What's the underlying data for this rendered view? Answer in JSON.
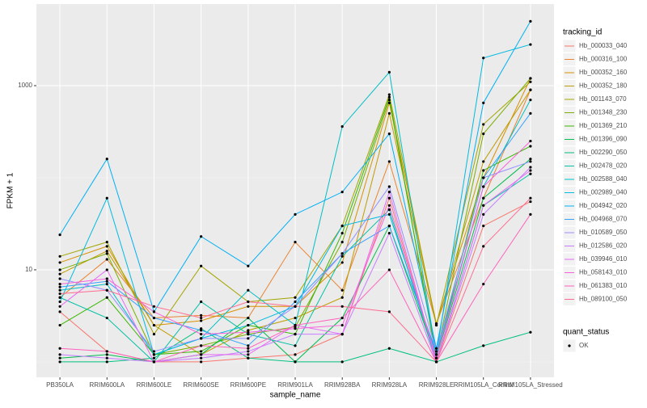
{
  "chart_data": {
    "type": "line",
    "xlabel": "sample_name",
    "ylabel": "FPKM + 1",
    "log_y": true,
    "grid": true,
    "categories": [
      "PB350LA",
      "RRIM600LA",
      "RRIM600LE",
      "RRIM600SE",
      "RRIM600PE",
      "RRIM901LA",
      "RRIM928BA",
      "RRIM928LA",
      "RRIM928LE",
      "RRIM105LA_Control",
      "RRIM105LA_Stressed"
    ],
    "ylim": [
      0.68,
      7700
    ],
    "yticks": [
      10,
      1000
    ],
    "legend_title": "tracking_id",
    "series": [
      {
        "name": "Hb_000033_040",
        "color": "#F8766D",
        "values": [
          3.5,
          1.3,
          1,
          1,
          1.1,
          1.2,
          2.0,
          60,
          1,
          30,
          55
        ]
      },
      {
        "name": "Hb_000316_100",
        "color": "#EA8331",
        "values": [
          5,
          13,
          3,
          3.2,
          3,
          20,
          6,
          150,
          2.6,
          60,
          900
        ]
      },
      {
        "name": "Hb_000352_160",
        "color": "#D89000",
        "values": [
          12,
          18,
          2.5,
          2.8,
          4,
          4,
          12,
          650,
          2.6,
          100,
          1200
        ]
      },
      {
        "name": "Hb_000352_180",
        "color": "#C09B00",
        "values": [
          9,
          16,
          2.5,
          1.2,
          2.2,
          3,
          5,
          500,
          2.5,
          150,
          900
        ]
      },
      {
        "name": "Hb_001143_070",
        "color": "#A3A500",
        "values": [
          14,
          20,
          2,
          11,
          4.5,
          5,
          30,
          800,
          2.5,
          380,
          1100
        ]
      },
      {
        "name": "Hb_001348_230",
        "color": "#7CAE00",
        "values": [
          10,
          15,
          1.2,
          1.5,
          2,
          2.4,
          20,
          700,
          1.2,
          300,
          1200
        ]
      },
      {
        "name": "Hb_001369_210",
        "color": "#39B600",
        "values": [
          2.5,
          5,
          1.2,
          1.3,
          2.5,
          2,
          25,
          750,
          1.1,
          120,
          220
        ]
      },
      {
        "name": "Hb_001396_090",
        "color": "#00BB4E",
        "values": [
          1.1,
          1.2,
          1,
          1.2,
          3,
          1,
          3,
          30,
          1.1,
          60,
          160
        ]
      },
      {
        "name": "Hb_002290_050",
        "color": "#00BF7D",
        "values": [
          1,
          1,
          1.1,
          2.3,
          1.1,
          1,
          1,
          1.4,
          1,
          1.5,
          2.1
        ]
      },
      {
        "name": "Hb_002478_020",
        "color": "#00C1A3",
        "values": [
          5,
          3,
          1,
          4.5,
          2,
          1.5,
          14,
          45,
          1,
          50,
          110
        ]
      },
      {
        "name": "Hb_002588_040",
        "color": "#00BFC4",
        "values": [
          6,
          7,
          1.2,
          1.8,
          6,
          2.5,
          360,
          1400,
          1.2,
          80,
          700
        ]
      },
      {
        "name": "Hb_002989_040",
        "color": "#00BAE0",
        "values": [
          4.5,
          60,
          1.2,
          1.8,
          2.5,
          4,
          30,
          40,
          1.2,
          2000,
          2800
        ]
      },
      {
        "name": "Hb_004942_020",
        "color": "#00B0F6",
        "values": [
          24,
          160,
          3.5,
          23,
          11,
          40,
          70,
          300,
          1.4,
          650,
          5000
        ]
      },
      {
        "name": "Hb_004968_070",
        "color": "#35A2FF",
        "values": [
          6.5,
          7.5,
          3,
          2.2,
          1.5,
          4.5,
          15,
          30,
          1.3,
          100,
          500
        ]
      },
      {
        "name": "Hb_010589_050",
        "color": "#9590FF",
        "values": [
          8,
          6,
          1.3,
          1.8,
          1.8,
          4,
          15,
          80,
          1.3,
          100,
          150
        ]
      },
      {
        "name": "Hb_012586_020",
        "color": "#C77CFF",
        "values": [
          1.2,
          1.1,
          1,
          1.1,
          1.3,
          2,
          2,
          25,
          1,
          40,
          130
        ]
      },
      {
        "name": "Hb_039946_010",
        "color": "#E76BF3",
        "values": [
          4,
          10,
          1,
          1.2,
          1.2,
          2.5,
          2,
          70,
          1,
          50,
          120
        ]
      },
      {
        "name": "Hb_058143_010",
        "color": "#FA62DB",
        "values": [
          7,
          8,
          3.5,
          2,
          2.1,
          2.3,
          2.5,
          50,
          1.1,
          80,
          250
        ]
      },
      {
        "name": "Hb_061383_010",
        "color": "#FF62BC",
        "values": [
          1.4,
          1.3,
          1,
          1.5,
          1.4,
          2.5,
          3,
          10,
          1,
          7,
          40
        ]
      },
      {
        "name": "Hb_089100_050",
        "color": "#FF6C91",
        "values": [
          5.5,
          6,
          4,
          3,
          4.5,
          4,
          4,
          3.5,
          1,
          18,
          60
        ]
      }
    ],
    "point_legend": {
      "title": "quant_status",
      "labels": [
        "OK"
      ]
    }
  }
}
